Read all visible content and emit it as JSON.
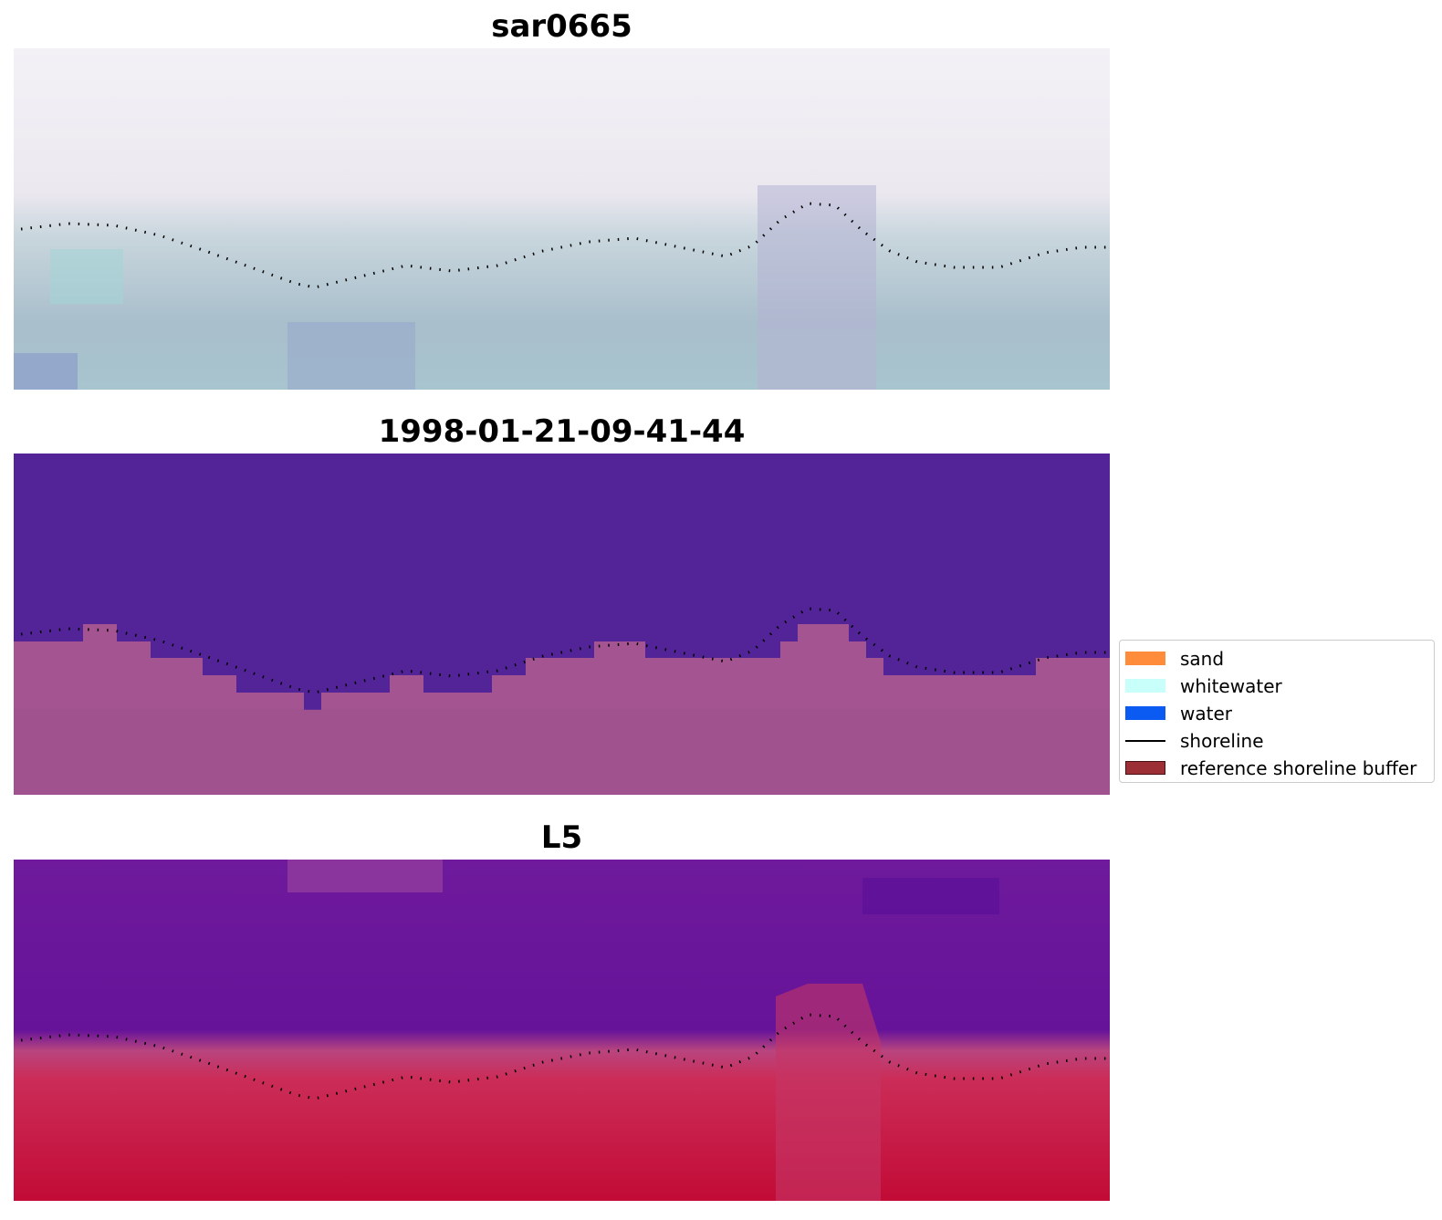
{
  "panels": [
    {
      "title": "sar0665"
    },
    {
      "title": "1998-01-21-09-41-44"
    },
    {
      "title": "L5"
    }
  ],
  "legend": {
    "items": [
      {
        "label": "sand",
        "kind": "patch",
        "color": "#ff8c3a"
      },
      {
        "label": "whitewater",
        "kind": "patch",
        "color": "#c9fffb"
      },
      {
        "label": "water",
        "kind": "patch",
        "color": "#0b5af2"
      },
      {
        "label": "shoreline",
        "kind": "line",
        "color": "#000000"
      },
      {
        "label": "reference shoreline buffer",
        "kind": "patch",
        "color": "#9b2f35",
        "edge": "#4a0f12"
      }
    ]
  }
}
